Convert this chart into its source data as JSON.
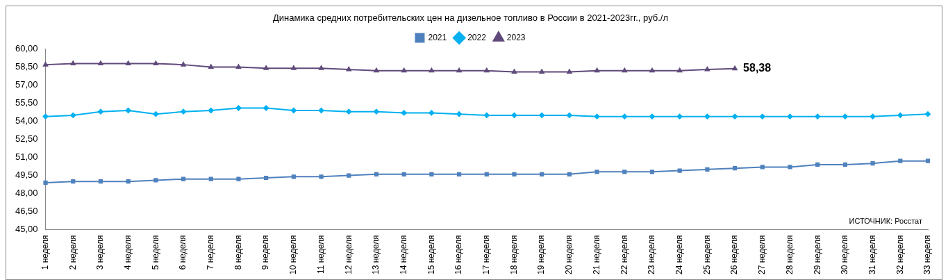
{
  "chart_data": {
    "type": "line",
    "title": "Динамика средних потребительских цен на дизельное топливо в России в 2021-2023гг., руб./л",
    "categories": [
      "1 неделя",
      "2 неделя",
      "3 неделя",
      "4 неделя",
      "5 неделя",
      "6 неделя",
      "7 неделя",
      "8 неделя",
      "9 неделя",
      "10 неделя",
      "11 неделя",
      "12 неделя",
      "13 неделя",
      "14 неделя",
      "15 неделя",
      "16 неделя",
      "17 неделя",
      "18 неделя",
      "19 неделя",
      "20 неделя",
      "21 неделя",
      "22 неделя",
      "23 неделя",
      "24 неделя",
      "25 неделя",
      "26 неделя",
      "27 неделя",
      "28 неделя",
      "29 неделя",
      "30 неделя",
      "31 неделя",
      "32 неделя",
      "33 неделя"
    ],
    "series": [
      {
        "name": "2021",
        "color": "#4f81bd",
        "marker": "square",
        "values": [
          48.9,
          49.0,
          49.0,
          49.0,
          49.1,
          49.2,
          49.2,
          49.2,
          49.3,
          49.4,
          49.4,
          49.5,
          49.6,
          49.6,
          49.6,
          49.6,
          49.6,
          49.6,
          49.6,
          49.6,
          49.8,
          49.8,
          49.8,
          49.9,
          50.0,
          50.1,
          50.2,
          50.2,
          50.4,
          50.4,
          50.5,
          50.7,
          50.7
        ]
      },
      {
        "name": "2022",
        "color": "#00b0f0",
        "marker": "diamond",
        "values": [
          54.4,
          54.5,
          54.8,
          54.9,
          54.6,
          54.8,
          54.9,
          55.1,
          55.1,
          54.9,
          54.9,
          54.8,
          54.8,
          54.7,
          54.7,
          54.6,
          54.5,
          54.5,
          54.5,
          54.5,
          54.4,
          54.4,
          54.4,
          54.4,
          54.4,
          54.4,
          54.4,
          54.4,
          54.4,
          54.4,
          54.4,
          54.5,
          54.6
        ]
      },
      {
        "name": "2023",
        "color": "#604a7b",
        "marker": "triangle",
        "values": [
          58.7,
          58.8,
          58.8,
          58.8,
          58.8,
          58.7,
          58.5,
          58.5,
          58.4,
          58.4,
          58.4,
          58.3,
          58.2,
          58.2,
          58.2,
          58.2,
          58.2,
          58.1,
          58.1,
          58.1,
          58.2,
          58.2,
          58.2,
          58.2,
          58.3,
          58.38,
          null,
          null,
          null,
          null,
          null,
          null,
          null
        ]
      }
    ],
    "ylim": [
      45,
      60
    ],
    "yticks": [
      {
        "value": 45,
        "label": "45,00"
      },
      {
        "value": 46.5,
        "label": "46,50"
      },
      {
        "value": 48,
        "label": "48,00"
      },
      {
        "value": 49.5,
        "label": "49,50"
      },
      {
        "value": 51,
        "label": "51,00"
      },
      {
        "value": 52.5,
        "label": "52,50"
      },
      {
        "value": 54,
        "label": "54,00"
      },
      {
        "value": 55.5,
        "label": "55,50"
      },
      {
        "value": 57,
        "label": "57,00"
      },
      {
        "value": 58.5,
        "label": "58,50"
      },
      {
        "value": 60,
        "label": "60,00"
      }
    ],
    "grid": false,
    "legend": "top",
    "line_style": "solid",
    "annotations": [
      {
        "text": "58,38",
        "x": "26 неделя",
        "y": 58.38
      },
      "ИСТОЧНИК: Росстат"
    ]
  }
}
